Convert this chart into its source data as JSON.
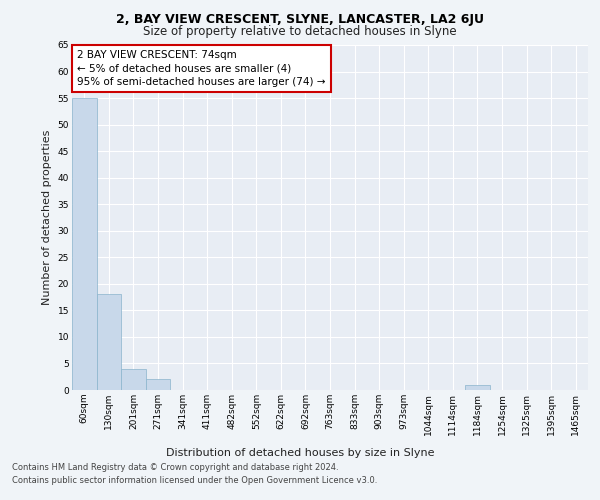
{
  "title": "2, BAY VIEW CRESCENT, SLYNE, LANCASTER, LA2 6JU",
  "subtitle": "Size of property relative to detached houses in Slyne",
  "xlabel": "Distribution of detached houses by size in Slyne",
  "ylabel": "Number of detached properties",
  "bar_color": "#c8d8ea",
  "bar_edge_color": "#8ab4cc",
  "background_color": "#e8edf4",
  "plot_bg_color": "#e8edf4",
  "fig_bg_color": "#f0f4f8",
  "categories": [
    "60sqm",
    "130sqm",
    "201sqm",
    "271sqm",
    "341sqm",
    "411sqm",
    "482sqm",
    "552sqm",
    "622sqm",
    "692sqm",
    "763sqm",
    "833sqm",
    "903sqm",
    "973sqm",
    "1044sqm",
    "1114sqm",
    "1184sqm",
    "1254sqm",
    "1325sqm",
    "1395sqm",
    "1465sqm"
  ],
  "values": [
    55,
    18,
    4,
    2,
    0,
    0,
    0,
    0,
    0,
    0,
    0,
    0,
    0,
    0,
    0,
    0,
    1,
    0,
    0,
    0,
    0
  ],
  "ylim": [
    0,
    65
  ],
  "yticks": [
    0,
    5,
    10,
    15,
    20,
    25,
    30,
    35,
    40,
    45,
    50,
    55,
    60,
    65
  ],
  "annotation_box_text": "2 BAY VIEW CRESCENT: 74sqm\n← 5% of detached houses are smaller (4)\n95% of semi-detached houses are larger (74) →",
  "annotation_box_color": "#cc0000",
  "annotation_box_fill": "white",
  "footer_line1": "Contains HM Land Registry data © Crown copyright and database right 2024.",
  "footer_line2": "Contains public sector information licensed under the Open Government Licence v3.0.",
  "grid_color": "#ffffff",
  "title_fontsize": 9,
  "subtitle_fontsize": 8.5,
  "axis_label_fontsize": 8,
  "tick_fontsize": 6.5,
  "annotation_fontsize": 7.5,
  "footer_fontsize": 6
}
